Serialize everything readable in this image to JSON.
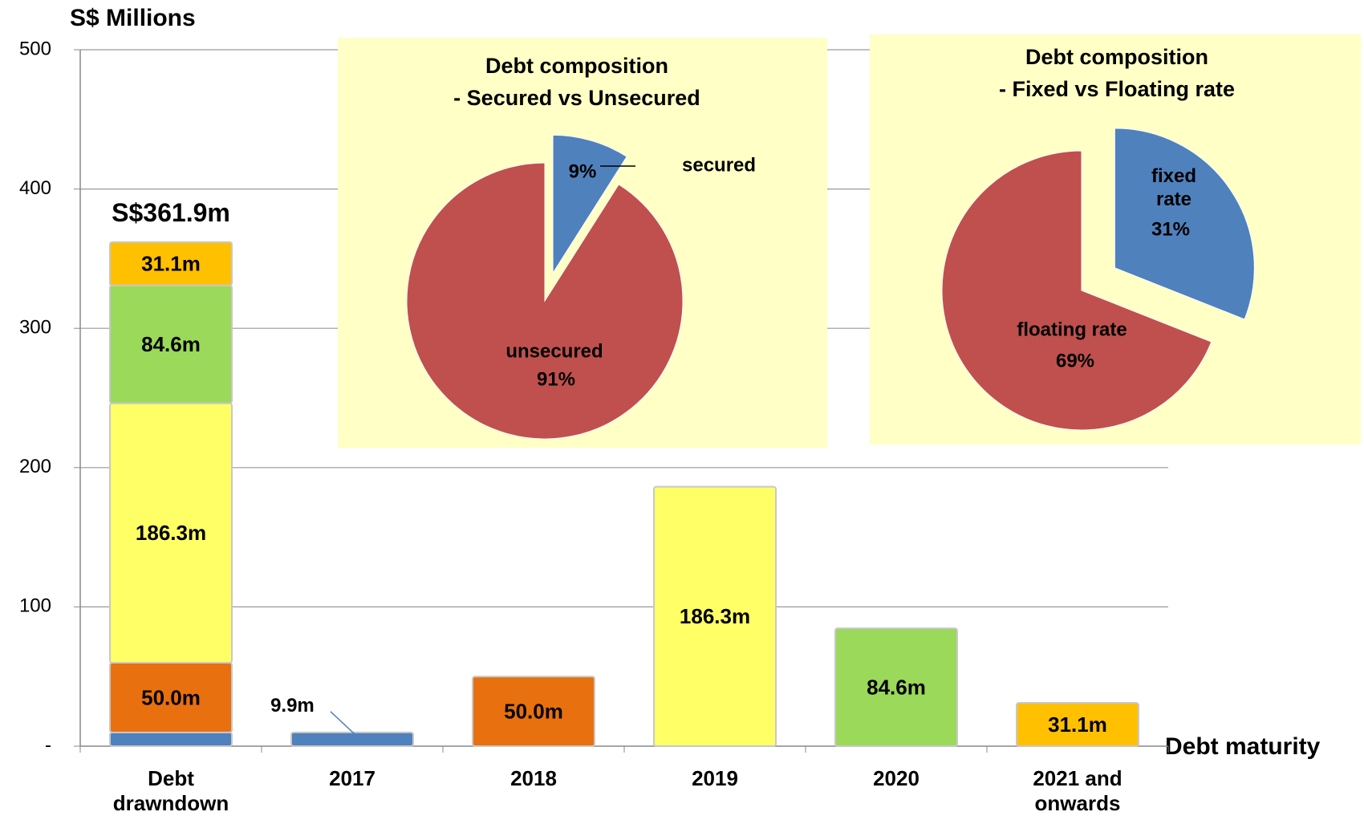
{
  "chart_data": [
    {
      "type": "bar",
      "stacked": true,
      "ylabel": "S$ Millions",
      "xlabel": "Debt maturity",
      "categories": [
        "Debt drawndown",
        "2017",
        "2018",
        "2019",
        "2020",
        "2021 and onwards"
      ],
      "series": [
        {
          "color": "#4f81bd",
          "values": [
            9.9,
            9.9,
            null,
            null,
            null,
            null
          ],
          "value_labels": [
            null,
            "9.9m",
            null,
            null,
            null,
            null
          ]
        },
        {
          "color": "#e8700f",
          "values": [
            50.0,
            null,
            50.0,
            null,
            null,
            null
          ],
          "value_labels": [
            "50.0m",
            null,
            "50.0m",
            null,
            null,
            null
          ]
        },
        {
          "color": "#ffff66",
          "values": [
            186.3,
            null,
            null,
            186.3,
            null,
            null
          ],
          "value_labels": [
            "186.3m",
            null,
            null,
            "186.3m",
            null,
            null
          ]
        },
        {
          "color": "#9bd95a",
          "values": [
            84.6,
            null,
            null,
            null,
            84.6,
            null
          ],
          "value_labels": [
            "84.6m",
            null,
            null,
            null,
            "84.6m",
            null
          ]
        },
        {
          "color": "#ffc000",
          "values": [
            31.1,
            null,
            null,
            null,
            null,
            31.1
          ],
          "value_labels": [
            "31.1m",
            null,
            null,
            null,
            null,
            "31.1m"
          ]
        }
      ],
      "ylim": [
        0,
        500
      ],
      "yticks": [
        {
          "value": 0,
          "label": "-"
        },
        100,
        200,
        300,
        400,
        500
      ],
      "grid": true,
      "annotations": [
        {
          "text": "S$361.9m",
          "value": 361.9
        }
      ]
    },
    {
      "type": "pie",
      "title": "Debt composition",
      "subtitle": "- Secured vs Unsecured",
      "labels": [
        "secured",
        "unsecured"
      ],
      "values": [
        9,
        91
      ],
      "value_labels": [
        "9%",
        "91%"
      ],
      "colors": [
        "#4f81bd",
        "#c0504d"
      ]
    },
    {
      "type": "pie",
      "title": "Debt composition",
      "subtitle": "- Fixed vs Floating rate",
      "labels": [
        "fixed rate",
        "floating rate"
      ],
      "values": [
        31,
        69
      ],
      "value_labels": [
        "31%",
        "69%"
      ],
      "colors": [
        "#4f81bd",
        "#c0504d"
      ]
    }
  ]
}
